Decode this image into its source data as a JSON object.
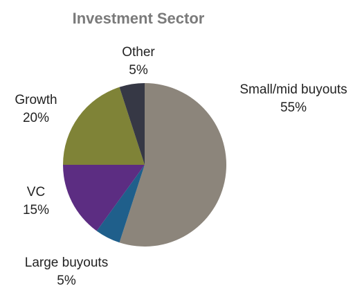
{
  "chart_data": {
    "type": "pie",
    "title": "Investment Sector",
    "categories": [
      "Small/mid buyouts",
      "Large buyouts",
      "VC",
      "Growth",
      "Other"
    ],
    "values": [
      55,
      5,
      15,
      20,
      5
    ],
    "value_labels": [
      "55%",
      "5%",
      "15%",
      "20%",
      "5%"
    ],
    "colors": [
      "#8c857b",
      "#1f5f8b",
      "#5c2d82",
      "#7f8337",
      "#363845"
    ]
  }
}
